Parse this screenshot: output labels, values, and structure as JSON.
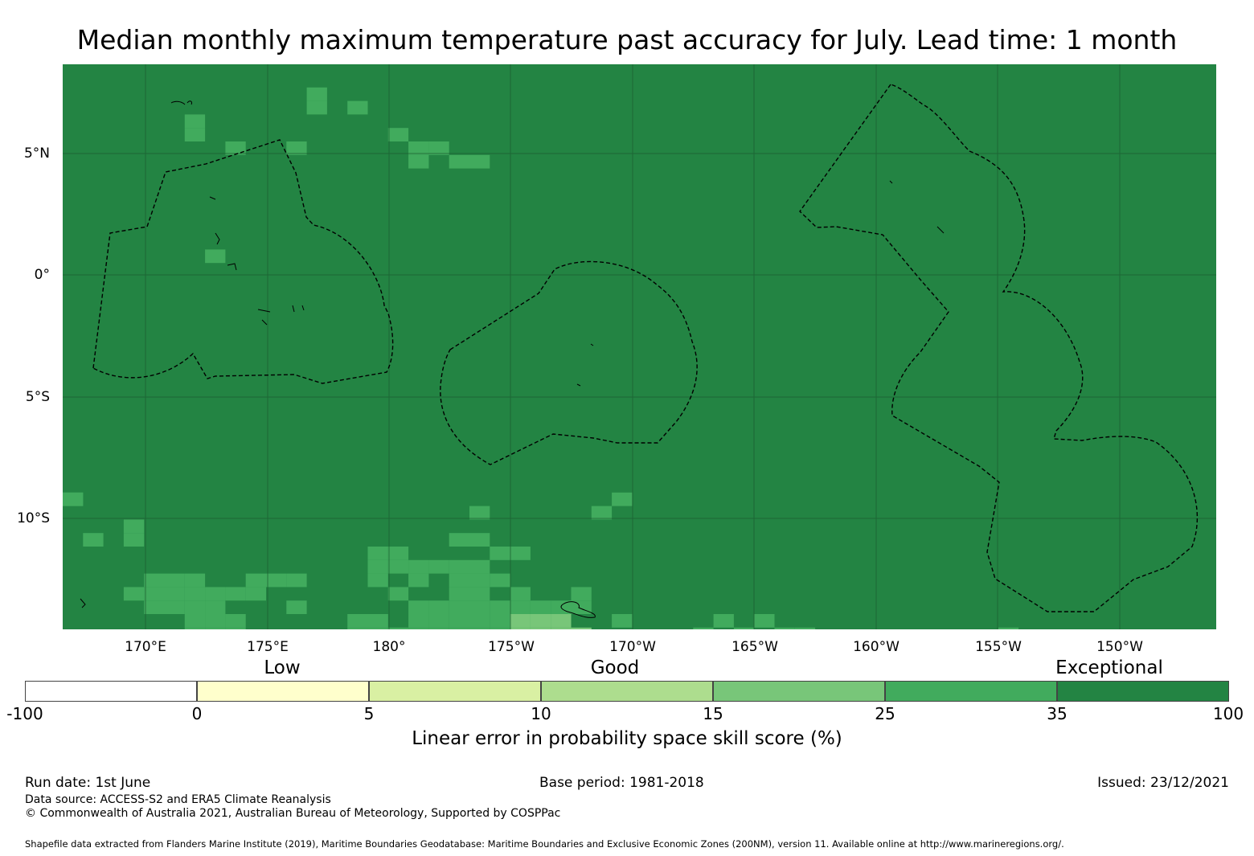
{
  "title": "Median monthly maximum temperature past accuracy for July. Lead time: 1 month",
  "map": {
    "background_color": "#238443",
    "shade_color": "#41ab5d",
    "light_color": "#78c679",
    "lon_labels": [
      "170°E",
      "175°E",
      "180°",
      "175°W",
      "170°W",
      "165°W",
      "160°W",
      "155°W",
      "150°W"
    ],
    "lat_labels": [
      "5°N",
      "0°",
      "5°S",
      "10°S"
    ]
  },
  "categories": [
    "Low",
    "Good",
    "Exceptional"
  ],
  "colorbar": {
    "colors": [
      "#ffffff",
      "#ffffcc",
      "#d9f0a3",
      "#addd8e",
      "#78c679",
      "#41ab5d",
      "#238443"
    ],
    "ticks": [
      "-100",
      "0",
      "5",
      "10",
      "15",
      "25",
      "35",
      "100"
    ],
    "label": "Linear error in probability space skill score (%)"
  },
  "footer": {
    "run_date": "Run date: 1st June",
    "base_period": "Base period: 1981-2018",
    "issued": "Issued: 23/12/2021",
    "data_source": "Data source: ACCESS-S2 and ERA5 Climate Reanalysis",
    "copyright": "© Commonwealth of Australia 2021, Australian Bureau of Meteorology, Supported by COSPPac",
    "shapefile": "Shapefile data extracted from Flanders Marine Institute (2019), Maritime Boundaries Geodatabase: Maritime Boundaries and Exclusive Economic Zones (200NM), version 11. Available online at http://www.marineregions.org/."
  }
}
